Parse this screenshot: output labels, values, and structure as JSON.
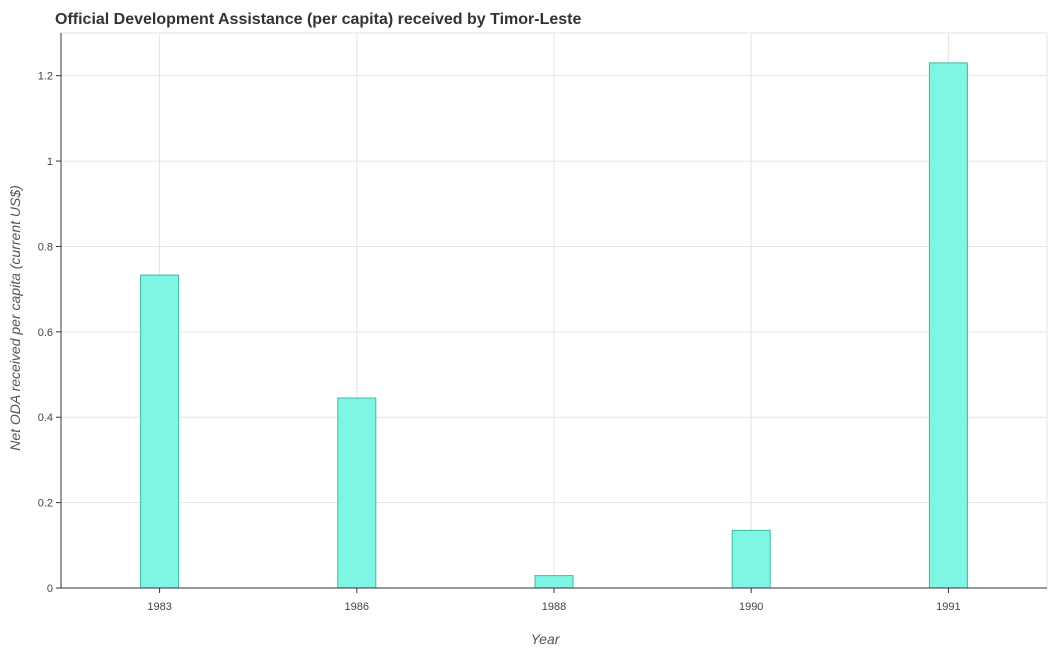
{
  "chart_data": {
    "type": "bar",
    "title": "Official Development Assistance (per capita) received by Timor-Leste",
    "xlabel": "Year",
    "ylabel": "Net ODA received per capita (current US$)",
    "categories": [
      "1983",
      "1986",
      "1988",
      "1990",
      "1991"
    ],
    "values": [
      0.733,
      0.445,
      0.029,
      0.135,
      1.23
    ],
    "ylim": [
      0,
      1.3
    ],
    "yticks": [
      0,
      0.2,
      0.4,
      0.6,
      0.8,
      1,
      1.2
    ],
    "ytick_labels": [
      "0",
      "0.2",
      "0.4",
      "0.6",
      "0.8",
      "1",
      "1.2"
    ],
    "grid": true,
    "bar_color": "#7ff5e3",
    "bar_edge_color": "#3fb8a6"
  }
}
